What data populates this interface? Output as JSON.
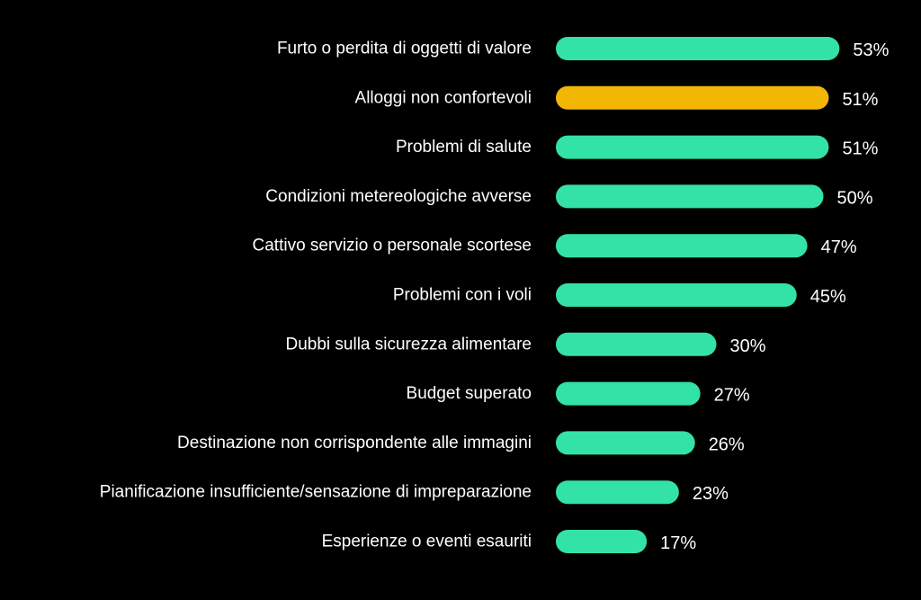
{
  "chart_data": {
    "type": "bar",
    "orientation": "horizontal",
    "categories": [
      "Furto o perdita di oggetti di valore",
      "Alloggi non confortevoli",
      "Problemi di salute",
      "Condizioni metereologiche avverse",
      "Cattivo servizio o personale scortese",
      "Problemi con i voli",
      "Dubbi sulla sicurezza alimentare",
      "Budget superato",
      "Destinazione non corrispondente alle immagini",
      "Pianificazione insufficiente/sensazione di impreparazione",
      "Esperienze o eventi esauriti"
    ],
    "values": [
      53,
      51,
      51,
      50,
      47,
      45,
      30,
      27,
      26,
      23,
      17
    ],
    "value_labels": [
      "53%",
      "51%",
      "51%",
      "50%",
      "47%",
      "45%",
      "30%",
      "27%",
      "26%",
      "23%",
      "17%"
    ],
    "highlight_index": 1,
    "colors": {
      "background": "#000000",
      "bar": "#33E2A6",
      "highlight": "#F2B705",
      "text": "#FFFFFF"
    },
    "grid": false,
    "legend": "none"
  }
}
